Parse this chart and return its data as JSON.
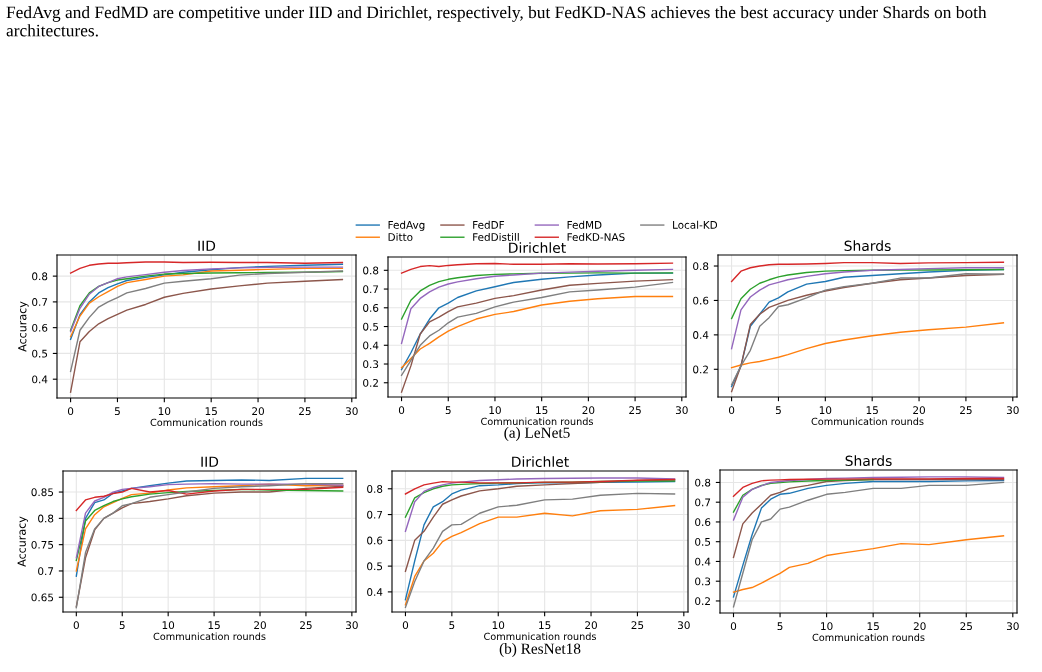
{
  "chart_data": [
    {
      "type": "line",
      "title": "IID",
      "xlabel": "Communication rounds",
      "ylabel": "Accuracy",
      "annotations": [
        "FedAvg and FedMD are competitive under IID and Dirichlet, respectively, but FedKD-NAS achieves the best accuracy under Shards on both architectures."
      ],
      "x": [
        0,
        1,
        2,
        3,
        4,
        5,
        6,
        8,
        10,
        12,
        15,
        18,
        21,
        25,
        29
      ],
      "xlim": [
        -1.45,
        30.45
      ],
      "xticks": [
        0,
        5,
        10,
        15,
        20,
        25,
        30
      ],
      "ylim": [
        0.327,
        0.882
      ],
      "yticks": [
        0.4,
        0.5,
        0.6,
        0.7,
        0.8
      ],
      "grid": true,
      "legend": false,
      "series": [
        {
          "color": "#1f77b4",
          "values": [
            0.555,
            0.65,
            0.7,
            0.735,
            0.755,
            0.77,
            0.783,
            0.795,
            0.805,
            0.815,
            0.825,
            0.833,
            0.838,
            0.842,
            0.846
          ]
        },
        {
          "color": "#ff7f0e",
          "values": [
            0.565,
            0.645,
            0.695,
            0.72,
            0.74,
            0.76,
            0.775,
            0.787,
            0.8,
            0.805,
            0.82,
            0.823,
            0.826,
            0.83,
            0.83
          ]
        },
        {
          "color": "#8c564b",
          "values": [
            0.35,
            0.545,
            0.585,
            0.615,
            0.635,
            0.652,
            0.668,
            0.69,
            0.718,
            0.733,
            0.75,
            0.762,
            0.773,
            0.78,
            0.787
          ]
        },
        {
          "color": "#2ca02c",
          "values": [
            0.59,
            0.685,
            0.735,
            0.76,
            0.775,
            0.785,
            0.79,
            0.8,
            0.808,
            0.81,
            0.812,
            0.813,
            0.814,
            0.815,
            0.818
          ]
        },
        {
          "color": "#9467bd",
          "values": [
            0.585,
            0.675,
            0.73,
            0.76,
            0.775,
            0.79,
            0.797,
            0.806,
            0.815,
            0.822,
            0.828,
            0.832,
            0.834,
            0.835,
            0.835
          ]
        },
        {
          "color": "#d62728",
          "values": [
            0.812,
            0.83,
            0.842,
            0.847,
            0.85,
            0.85,
            0.852,
            0.855,
            0.855,
            0.853,
            0.854,
            0.853,
            0.853,
            0.85,
            0.853
          ]
        },
        {
          "color": "#7f7f7f",
          "values": [
            0.43,
            0.59,
            0.64,
            0.68,
            0.7,
            0.717,
            0.735,
            0.752,
            0.773,
            0.78,
            0.79,
            0.804,
            0.81,
            0.815,
            0.82
          ]
        }
      ]
    },
    {
      "type": "line",
      "title": "Dirichlet",
      "xlabel": "Communication rounds",
      "annotations": [
        "(a) LeNet5"
      ],
      "x": [
        0,
        1,
        2,
        3,
        4,
        5,
        6,
        8,
        10,
        12,
        15,
        18,
        21,
        25,
        29
      ],
      "xlim": [
        -1.45,
        30.45
      ],
      "xticks": [
        0,
        5,
        10,
        15,
        20,
        25,
        30
      ],
      "ylim": [
        0.124,
        0.871
      ],
      "yticks": [
        0.2,
        0.3,
        0.4,
        0.5,
        0.6,
        0.7,
        0.8
      ],
      "grid": true,
      "legend": "top",
      "series": [
        {
          "name": "FedAvg",
          "color": "#1f77b4",
          "values": [
            0.27,
            0.36,
            0.46,
            0.54,
            0.6,
            0.625,
            0.655,
            0.69,
            0.712,
            0.735,
            0.752,
            0.765,
            0.775,
            0.785,
            0.785
          ]
        },
        {
          "name": "Ditto",
          "color": "#ff7f0e",
          "values": [
            0.28,
            0.33,
            0.38,
            0.41,
            0.445,
            0.475,
            0.5,
            0.54,
            0.565,
            0.58,
            0.615,
            0.635,
            0.648,
            0.66,
            0.66
          ]
        },
        {
          "name": "FedDF",
          "color": "#8c564b",
          "values": [
            0.15,
            0.29,
            0.46,
            0.525,
            0.55,
            0.58,
            0.605,
            0.625,
            0.65,
            0.665,
            0.695,
            0.72,
            0.73,
            0.742,
            0.75
          ]
        },
        {
          "name": "FedDistill",
          "color": "#2ca02c",
          "values": [
            0.54,
            0.64,
            0.69,
            0.72,
            0.74,
            0.752,
            0.76,
            0.772,
            0.778,
            0.781,
            0.784,
            0.785,
            0.786,
            0.785,
            0.786
          ]
        },
        {
          "name": "FedMD",
          "color": "#9467bd",
          "values": [
            0.41,
            0.595,
            0.65,
            0.685,
            0.71,
            0.727,
            0.738,
            0.755,
            0.768,
            0.775,
            0.785,
            0.79,
            0.795,
            0.8,
            0.805
          ]
        },
        {
          "name": "FedKD-NAS",
          "color": "#d62728",
          "values": [
            0.785,
            0.805,
            0.82,
            0.825,
            0.82,
            0.826,
            0.83,
            0.835,
            0.836,
            0.832,
            0.832,
            0.835,
            0.834,
            0.835,
            0.838
          ]
        },
        {
          "name": "Local-KD",
          "color": "#7f7f7f",
          "values": [
            0.24,
            0.32,
            0.4,
            0.45,
            0.48,
            0.52,
            0.55,
            0.57,
            0.605,
            0.63,
            0.655,
            0.685,
            0.695,
            0.71,
            0.735
          ]
        }
      ]
    },
    {
      "type": "line",
      "title": "Shards",
      "xlabel": "Communication rounds",
      "x": [
        0,
        1,
        2,
        3,
        4,
        5,
        6,
        8,
        10,
        12,
        15,
        18,
        21,
        25,
        29
      ],
      "xlim": [
        -1.45,
        30.45
      ],
      "xticks": [
        0,
        5,
        10,
        15,
        20,
        25,
        30
      ],
      "ylim": [
        0.039,
        0.864
      ],
      "yticks": [
        0.2,
        0.4,
        0.6,
        0.8
      ],
      "grid": true,
      "legend": false,
      "series": [
        {
          "color": "#1f77b4",
          "values": [
            0.1,
            0.22,
            0.45,
            0.52,
            0.59,
            0.615,
            0.65,
            0.695,
            0.71,
            0.735,
            0.745,
            0.755,
            0.765,
            0.775,
            0.78
          ]
        },
        {
          "color": "#ff7f0e",
          "values": [
            0.21,
            0.225,
            0.237,
            0.245,
            0.258,
            0.27,
            0.285,
            0.32,
            0.35,
            0.37,
            0.395,
            0.415,
            0.43,
            0.445,
            0.47
          ]
        },
        {
          "color": "#8c564b",
          "values": [
            0.07,
            0.22,
            0.46,
            0.52,
            0.56,
            0.58,
            0.6,
            0.63,
            0.655,
            0.675,
            0.7,
            0.72,
            0.73,
            0.745,
            0.752
          ]
        },
        {
          "color": "#2ca02c",
          "values": [
            0.495,
            0.61,
            0.665,
            0.7,
            0.72,
            0.737,
            0.748,
            0.762,
            0.77,
            0.773,
            0.775,
            0.776,
            0.777,
            0.778,
            0.78
          ]
        },
        {
          "color": "#9467bd",
          "values": [
            0.32,
            0.545,
            0.62,
            0.66,
            0.69,
            0.705,
            0.72,
            0.74,
            0.755,
            0.765,
            0.775,
            0.78,
            0.785,
            0.79,
            0.79
          ]
        },
        {
          "color": "#d62728",
          "values": [
            0.71,
            0.77,
            0.79,
            0.8,
            0.807,
            0.81,
            0.81,
            0.812,
            0.815,
            0.82,
            0.82,
            0.815,
            0.818,
            0.82,
            0.822
          ]
        },
        {
          "color": "#7f7f7f",
          "values": [
            0.11,
            0.22,
            0.31,
            0.45,
            0.5,
            0.565,
            0.575,
            0.615,
            0.66,
            0.68,
            0.7,
            0.73,
            0.73,
            0.755,
            0.752
          ]
        }
      ]
    },
    {
      "type": "line",
      "title": "IID",
      "xlabel": "Communication rounds",
      "ylabel": "Accuracy",
      "x": [
        0,
        1,
        2,
        3,
        4,
        5,
        6,
        8,
        10,
        12,
        15,
        18,
        21,
        25,
        29
      ],
      "xlim": [
        -1.45,
        30.45
      ],
      "xticks": [
        0,
        5,
        10,
        15,
        20,
        25,
        30
      ],
      "ylim": [
        0.622,
        0.89
      ],
      "yticks": [
        0.65,
        0.7,
        0.75,
        0.8,
        0.85
      ],
      "grid": true,
      "legend": false,
      "series": [
        {
          "color": "#1f77b4",
          "values": [
            0.69,
            0.8,
            0.83,
            0.835,
            0.848,
            0.852,
            0.857,
            0.862,
            0.867,
            0.871,
            0.872,
            0.873,
            0.872,
            0.876,
            0.876
          ]
        },
        {
          "color": "#ff7f0e",
          "values": [
            0.7,
            0.78,
            0.807,
            0.822,
            0.83,
            0.838,
            0.845,
            0.848,
            0.854,
            0.858,
            0.86,
            0.862,
            0.865,
            0.862,
            0.863
          ]
        },
        {
          "color": "#8c564b",
          "values": [
            0.632,
            0.725,
            0.778,
            0.8,
            0.81,
            0.82,
            0.828,
            0.832,
            0.837,
            0.843,
            0.848,
            0.85,
            0.85,
            0.857,
            0.861
          ]
        },
        {
          "color": "#2ca02c",
          "values": [
            0.72,
            0.795,
            0.815,
            0.824,
            0.832,
            0.837,
            0.841,
            0.846,
            0.849,
            0.851,
            0.853,
            0.855,
            0.854,
            0.853,
            0.852
          ]
        },
        {
          "color": "#9467bd",
          "values": [
            0.725,
            0.81,
            0.833,
            0.84,
            0.85,
            0.855,
            0.857,
            0.86,
            0.864,
            0.865,
            0.866,
            0.865,
            0.865,
            0.865,
            0.863
          ]
        },
        {
          "color": "#d62728",
          "values": [
            0.815,
            0.835,
            0.84,
            0.842,
            0.847,
            0.85,
            0.857,
            0.85,
            0.853,
            0.846,
            0.852,
            0.855,
            0.855,
            0.855,
            0.859
          ]
        },
        {
          "color": "#7f7f7f",
          "values": [
            0.63,
            0.735,
            0.78,
            0.8,
            0.81,
            0.824,
            0.828,
            0.84,
            0.845,
            0.85,
            0.857,
            0.86,
            0.862,
            0.866,
            0.866
          ]
        }
      ]
    },
    {
      "type": "line",
      "title": "Dirichlet",
      "xlabel": "Communication rounds",
      "annotations": [
        "(b) ResNet18"
      ],
      "x": [
        0,
        1,
        2,
        3,
        4,
        5,
        6,
        8,
        10,
        12,
        15,
        18,
        21,
        25,
        29
      ],
      "xlim": [
        -1.45,
        30.45
      ],
      "xticks": [
        0,
        5,
        10,
        15,
        20,
        25,
        30
      ],
      "ylim": [
        0.322,
        0.869
      ],
      "yticks": [
        0.4,
        0.5,
        0.6,
        0.7,
        0.8
      ],
      "grid": true,
      "legend": false,
      "series": [
        {
          "color": "#1f77b4",
          "values": [
            0.37,
            0.52,
            0.66,
            0.73,
            0.75,
            0.78,
            0.795,
            0.812,
            0.815,
            0.82,
            0.824,
            0.822,
            0.825,
            0.826,
            0.828
          ]
        },
        {
          "color": "#ff7f0e",
          "values": [
            0.35,
            0.46,
            0.52,
            0.55,
            0.595,
            0.615,
            0.63,
            0.665,
            0.69,
            0.69,
            0.705,
            0.695,
            0.715,
            0.72,
            0.735
          ]
        },
        {
          "color": "#8c564b",
          "values": [
            0.48,
            0.6,
            0.635,
            0.69,
            0.74,
            0.757,
            0.772,
            0.792,
            0.8,
            0.81,
            0.815,
            0.82,
            0.825,
            0.832,
            0.835
          ]
        },
        {
          "color": "#2ca02c",
          "values": [
            0.69,
            0.765,
            0.785,
            0.8,
            0.81,
            0.815,
            0.817,
            0.82,
            0.822,
            0.823,
            0.825,
            0.826,
            0.828,
            0.83,
            0.83
          ]
        },
        {
          "color": "#9467bd",
          "values": [
            0.635,
            0.75,
            0.79,
            0.805,
            0.815,
            0.822,
            0.826,
            0.832,
            0.835,
            0.838,
            0.84,
            0.841,
            0.842,
            0.842,
            0.838
          ]
        },
        {
          "color": "#d62728",
          "values": [
            0.78,
            0.8,
            0.815,
            0.822,
            0.828,
            0.826,
            0.826,
            0.823,
            0.823,
            0.823,
            0.826,
            0.826,
            0.828,
            0.833,
            0.836
          ]
        },
        {
          "color": "#7f7f7f",
          "values": [
            0.34,
            0.44,
            0.52,
            0.57,
            0.635,
            0.66,
            0.662,
            0.705,
            0.73,
            0.736,
            0.757,
            0.76,
            0.775,
            0.782,
            0.78
          ]
        }
      ]
    },
    {
      "type": "line",
      "title": "Shards",
      "xlabel": "Communication rounds",
      "x": [
        0,
        1,
        2,
        3,
        4,
        5,
        6,
        8,
        10,
        12,
        15,
        18,
        21,
        25,
        29
      ],
      "xlim": [
        -1.45,
        30.45
      ],
      "xticks": [
        0,
        5,
        10,
        15,
        20,
        25,
        30
      ],
      "ylim": [
        0.139,
        0.863
      ],
      "yticks": [
        0.2,
        0.3,
        0.4,
        0.5,
        0.6,
        0.7,
        0.8
      ],
      "grid": true,
      "legend": false,
      "series": [
        {
          "color": "#1f77b4",
          "values": [
            0.22,
            0.38,
            0.535,
            0.67,
            0.715,
            0.74,
            0.745,
            0.77,
            0.785,
            0.795,
            0.805,
            0.805,
            0.805,
            0.808,
            0.81
          ]
        },
        {
          "color": "#ff7f0e",
          "values": [
            0.245,
            0.258,
            0.268,
            0.29,
            0.315,
            0.34,
            0.37,
            0.39,
            0.43,
            0.445,
            0.465,
            0.49,
            0.485,
            0.51,
            0.53
          ]
        },
        {
          "color": "#8c564b",
          "values": [
            0.42,
            0.59,
            0.645,
            0.69,
            0.735,
            0.75,
            0.77,
            0.785,
            0.805,
            0.81,
            0.815,
            0.815,
            0.815,
            0.815,
            0.815
          ]
        },
        {
          "color": "#2ca02c",
          "values": [
            0.65,
            0.735,
            0.765,
            0.785,
            0.795,
            0.8,
            0.803,
            0.807,
            0.81,
            0.812,
            0.815,
            null,
            null,
            null,
            null
          ]
        },
        {
          "color": "#9467bd",
          "values": [
            0.61,
            0.725,
            0.765,
            0.783,
            0.8,
            0.805,
            0.81,
            0.815,
            0.82,
            0.822,
            0.825,
            0.826,
            0.828,
            0.828,
            0.825
          ]
        },
        {
          "color": "#d62728",
          "values": [
            0.73,
            0.775,
            0.795,
            0.808,
            0.812,
            0.813,
            0.815,
            0.816,
            0.817,
            0.817,
            0.818,
            0.818,
            0.818,
            0.82,
            0.82
          ]
        },
        {
          "color": "#7f7f7f",
          "values": [
            0.17,
            0.34,
            0.51,
            0.6,
            0.615,
            0.665,
            0.675,
            0.71,
            0.74,
            0.75,
            0.77,
            0.77,
            0.785,
            0.785,
            0.8
          ]
        }
      ]
    }
  ]
}
